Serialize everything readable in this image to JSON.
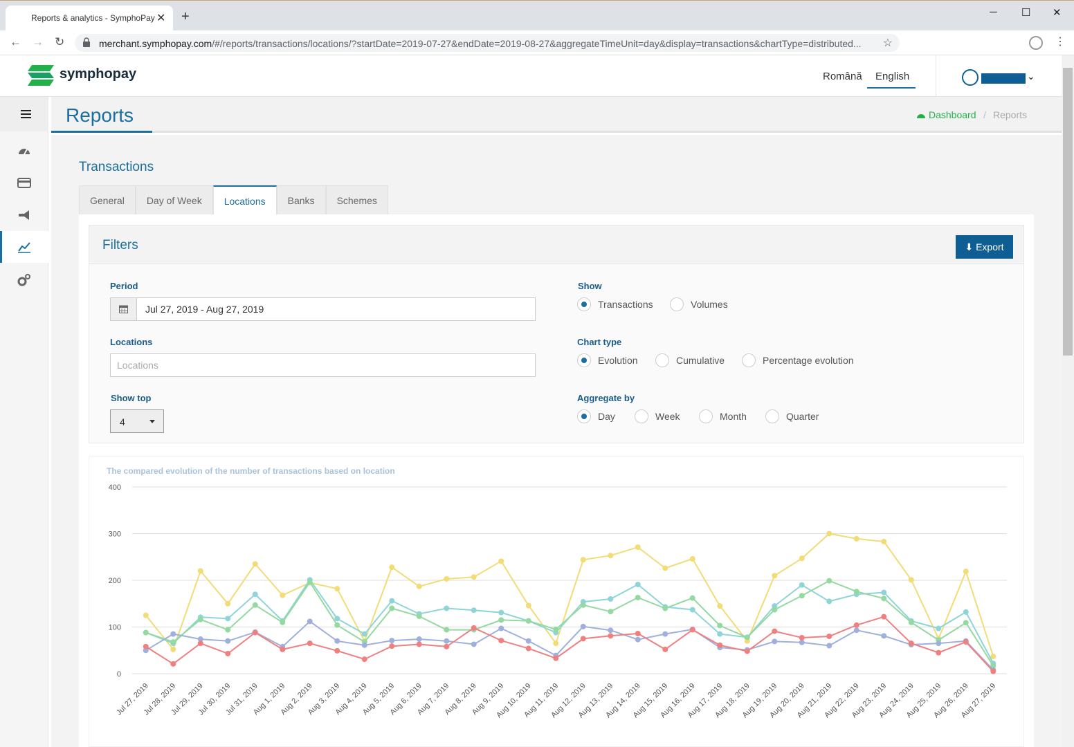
{
  "browser": {
    "tab_title": "Reports & analytics - SymphoPay",
    "url_host": "merchant.symphopay.com",
    "url_path": "/#/reports/transactions/locations/?startDate=2019-07-27&endDate=2019-08-27&aggregateTimeUnit=day&display=transactions&chartType=distributed..."
  },
  "header": {
    "logo_text": "symphopay",
    "languages": [
      "Română",
      "English"
    ],
    "active_language": "English"
  },
  "page": {
    "title": "Reports",
    "breadcrumb_home": "Dashboard",
    "breadcrumb_sep": "/",
    "breadcrumb_current": "Reports"
  },
  "section": {
    "title": "Transactions",
    "tabs": [
      "General",
      "Day of Week",
      "Locations",
      "Banks",
      "Schemes"
    ],
    "active_tab": "Locations"
  },
  "filters": {
    "title": "Filters",
    "export_label": "Export",
    "period_label": "Period",
    "period_value": "Jul 27, 2019 - Aug 27, 2019",
    "locations_label": "Locations",
    "locations_placeholder": "Locations",
    "showtop_label": "Show top",
    "showtop_value": "4",
    "show_label": "Show",
    "show_options": [
      "Transactions",
      "Volumes"
    ],
    "charttype_label": "Chart type",
    "charttype_options": [
      "Evolution",
      "Cumulative",
      "Percentage evolution"
    ],
    "aggregate_label": "Aggregate by",
    "aggregate_options": [
      "Day",
      "Week",
      "Month",
      "Quarter"
    ]
  },
  "colors": {
    "accent": "#1a6fa0",
    "green": "#22b04b",
    "series": [
      "#f2dc76",
      "#8fd4d8",
      "#93d9a0",
      "#9fb0dc",
      "#f07f80"
    ]
  },
  "chart_data": {
    "type": "line",
    "title": "The compared evolution of the number of transactions based on location",
    "ylim": [
      0,
      400
    ],
    "yticks": [
      0,
      100,
      200,
      300,
      400
    ],
    "grid": true,
    "categories": [
      "Jul 27, 2019",
      "Jul 28, 2019",
      "Jul 29, 2019",
      "Jul 30, 2019",
      "Jul 31, 2019",
      "Aug 1, 2019",
      "Aug 2, 2019",
      "Aug 3, 2019",
      "Aug 4, 2019",
      "Aug 5, 2019",
      "Aug 6, 2019",
      "Aug 7, 2019",
      "Aug 8, 2019",
      "Aug 9, 2019",
      "Aug 10, 2019",
      "Aug 11, 2019",
      "Aug 12, 2019",
      "Aug 13, 2019",
      "Aug 14, 2019",
      "Aug 15, 2019",
      "Aug 16, 2019",
      "Aug 17, 2019",
      "Aug 18, 2019",
      "Aug 19, 2019",
      "Aug 20, 2019",
      "Aug 21, 2019",
      "Aug 22, 2019",
      "Aug 23, 2019",
      "Aug 24, 2019",
      "Aug 25, 2019",
      "Aug 26, 2019",
      "Aug 27, 2019"
    ],
    "series": [
      {
        "color": "#f2dc76",
        "values": [
          125,
          52,
          220,
          150,
          235,
          168,
          195,
          182,
          70,
          228,
          187,
          203,
          207,
          241,
          146,
          65,
          244,
          253,
          271,
          226,
          246,
          145,
          70,
          210,
          247,
          300,
          289,
          283,
          201,
          75,
          219,
          37
        ]
      },
      {
        "color": "#8fd4d8",
        "values": [
          88,
          65,
          121,
          118,
          170,
          113,
          201,
          118,
          85,
          156,
          128,
          140,
          136,
          131,
          113,
          88,
          154,
          160,
          191,
          143,
          137,
          85,
          78,
          145,
          190,
          155,
          170,
          174,
          113,
          97,
          132,
          22
        ]
      },
      {
        "color": "#93d9a0",
        "values": [
          88,
          68,
          116,
          94,
          147,
          110,
          196,
          104,
          68,
          140,
          123,
          94,
          94,
          115,
          113,
          95,
          147,
          133,
          163,
          140,
          162,
          103,
          78,
          137,
          167,
          199,
          176,
          161,
          110,
          72,
          109,
          17
        ]
      },
      {
        "color": "#9fb0dc",
        "values": [
          50,
          85,
          74,
          70,
          89,
          58,
          112,
          70,
          61,
          71,
          74,
          70,
          63,
          97,
          70,
          39,
          101,
          93,
          73,
          85,
          95,
          56,
          51,
          69,
          67,
          60,
          93,
          81,
          62,
          65,
          70,
          8
        ]
      },
      {
        "color": "#f07f80",
        "values": [
          58,
          21,
          65,
          43,
          88,
          52,
          65,
          49,
          31,
          59,
          63,
          58,
          98,
          71,
          54,
          33,
          75,
          81,
          86,
          52,
          94,
          61,
          48,
          91,
          77,
          80,
          104,
          122,
          65,
          45,
          68,
          5
        ]
      }
    ]
  }
}
